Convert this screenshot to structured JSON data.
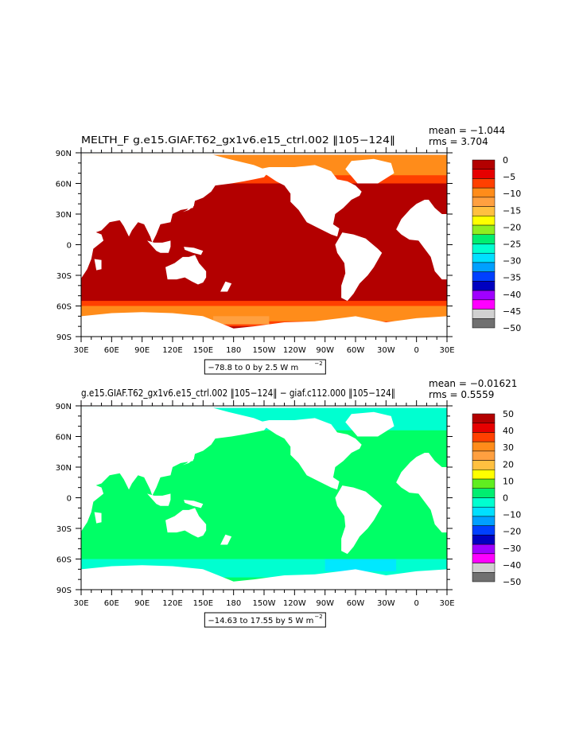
{
  "chart_data": [
    {
      "type": "heatmap",
      "title": "MELTH_F  g.e15.GIAF.T62_gx1v6.e15_ctrl.002  ‖105−124‖",
      "stats": {
        "mean_label": "mean = −1.044",
        "rms_label": "rms = 3.704"
      },
      "range_note": "−78.8 to 0 by 2.5  W m",
      "range_exp": "−2",
      "xlim": [
        30,
        390
      ],
      "ylim": [
        -90,
        90
      ],
      "x_ticks": [
        {
          "v": 30,
          "label": "30E"
        },
        {
          "v": 60,
          "label": "60E"
        },
        {
          "v": 90,
          "label": "90E"
        },
        {
          "v": 120,
          "label": "120E"
        },
        {
          "v": 150,
          "label": "150E"
        },
        {
          "v": 180,
          "label": "180"
        },
        {
          "v": 210,
          "label": "150W"
        },
        {
          "v": 240,
          "label": "120W"
        },
        {
          "v": 270,
          "label": "90W"
        },
        {
          "v": 300,
          "label": "60W"
        },
        {
          "v": 330,
          "label": "30W"
        },
        {
          "v": 360,
          "label": "0"
        },
        {
          "v": 390,
          "label": "30E"
        }
      ],
      "y_ticks": [
        {
          "v": 90,
          "label": "90N"
        },
        {
          "v": 60,
          "label": "60N"
        },
        {
          "v": 30,
          "label": "30N"
        },
        {
          "v": 0,
          "label": "0"
        },
        {
          "v": -30,
          "label": "30S"
        },
        {
          "v": -60,
          "label": "60S"
        },
        {
          "v": -90,
          "label": "90S"
        }
      ],
      "colorbar": {
        "labels": [
          "0",
          "−5",
          "−10",
          "−15",
          "−20",
          "−25",
          "−30",
          "−35",
          "−40",
          "−45",
          "−50"
        ],
        "colors": [
          "#b30000",
          "#e60000",
          "#ff4000",
          "#ff8c1a",
          "#ffa040",
          "#ffc040",
          "#ffff00",
          "#90ee20",
          "#00ee70",
          "#00ffd0",
          "#00e0ff",
          "#00a0ff",
          "#0040ff",
          "#0000c0",
          "#a000ff",
          "#ff00ff",
          "#d0d0d0",
          "#707070"
        ]
      },
      "field_colors": {
        "ocean": "#b30000",
        "subpolar": "#ff4000",
        "ice": "#ff8c1a",
        "pack": "#ffa040"
      }
    },
    {
      "type": "heatmap",
      "title": "g.e15.GIAF.T62_gx1v6.e15_ctrl.002  ‖105−124‖ − giaf.c112.000  ‖105−124‖",
      "stats": {
        "mean_label": "mean = −0.01621",
        "rms_label": "rms = 0.5559"
      },
      "range_note": "−14.63 to 17.55 by 5  W m",
      "range_exp": "−2",
      "xlim": [
        30,
        390
      ],
      "ylim": [
        -90,
        90
      ],
      "x_ticks": [
        {
          "v": 30,
          "label": "30E"
        },
        {
          "v": 60,
          "label": "60E"
        },
        {
          "v": 90,
          "label": "90E"
        },
        {
          "v": 120,
          "label": "120E"
        },
        {
          "v": 150,
          "label": "150E"
        },
        {
          "v": 180,
          "label": "180"
        },
        {
          "v": 210,
          "label": "150W"
        },
        {
          "v": 240,
          "label": "120W"
        },
        {
          "v": 270,
          "label": "90W"
        },
        {
          "v": 300,
          "label": "60W"
        },
        {
          "v": 330,
          "label": "30W"
        },
        {
          "v": 360,
          "label": "0"
        },
        {
          "v": 390,
          "label": "30E"
        }
      ],
      "y_ticks": [
        {
          "v": 90,
          "label": "90N"
        },
        {
          "v": 60,
          "label": "60N"
        },
        {
          "v": 30,
          "label": "30N"
        },
        {
          "v": 0,
          "label": "0"
        },
        {
          "v": -30,
          "label": "30S"
        },
        {
          "v": -60,
          "label": "60S"
        },
        {
          "v": -90,
          "label": "90S"
        }
      ],
      "colorbar": {
        "labels": [
          "50",
          "40",
          "30",
          "20",
          "10",
          "0",
          "−10",
          "−20",
          "−30",
          "−40",
          "−50"
        ],
        "colors": [
          "#b30000",
          "#e60000",
          "#ff4000",
          "#ff8c1a",
          "#ffa040",
          "#ffc040",
          "#ffff00",
          "#60ee20",
          "#00ee70",
          "#00ffd0",
          "#00e0ff",
          "#00a0ff",
          "#0040ff",
          "#0000c0",
          "#a000ff",
          "#ff00ff",
          "#d0d0d0",
          "#707070"
        ]
      },
      "field_colors": {
        "ocean": "#00ff66",
        "ice": "#00ffd0",
        "ice_edge": "#00e8ff"
      }
    }
  ]
}
